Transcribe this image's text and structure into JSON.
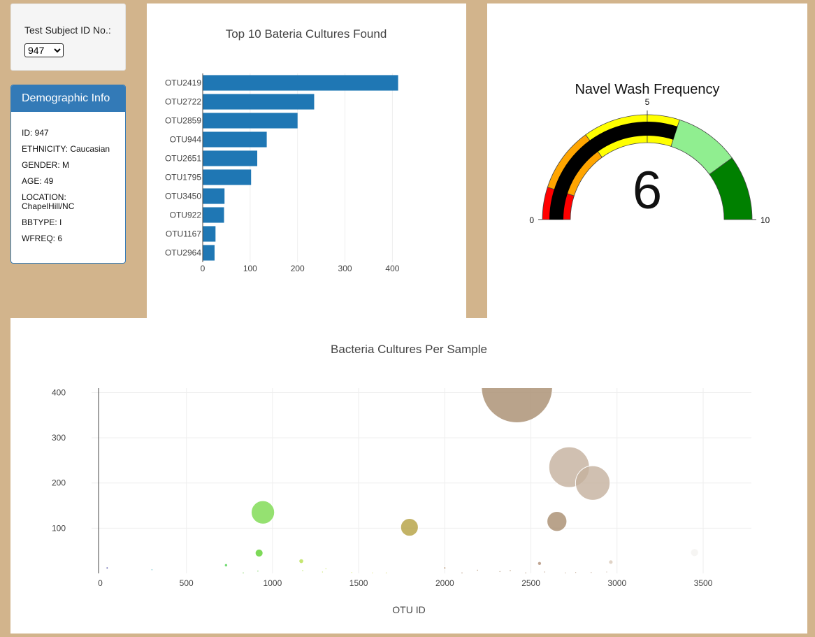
{
  "selector": {
    "label": "Test Subject ID No.:",
    "selected": "947"
  },
  "demographic": {
    "title": "Demographic Info",
    "rows": [
      "ID: 947",
      "ETHNICITY: Caucasian",
      "GENDER: M",
      "AGE: 49",
      "LOCATION: ChapelHill/NC",
      "BBTYPE: I",
      "WFREQ: 6"
    ]
  },
  "colors": {
    "page_bg": "#d2b48c",
    "bar": "#1f77b4",
    "panel_header": "#337ab7"
  },
  "chart_data": [
    {
      "type": "bar",
      "orientation": "horizontal",
      "title": "Top 10 Bateria Cultures Found",
      "categories": [
        "OTU2419",
        "OTU2722",
        "OTU2859",
        "OTU944",
        "OTU2651",
        "OTU1795",
        "OTU3450",
        "OTU922",
        "OTU1167",
        "OTU2964"
      ],
      "values": [
        412,
        235,
        200,
        135,
        115,
        102,
        46,
        45,
        27,
        25
      ],
      "xticks": [
        0,
        100,
        200,
        300,
        400
      ],
      "xlim": [
        0,
        420
      ],
      "grid": true
    },
    {
      "type": "gauge",
      "title": "Navel Wash Frequency",
      "value": 6,
      "value_label": "6",
      "min": 0,
      "max": 10,
      "tick_labels": [
        "0",
        "5",
        "10"
      ],
      "bands": [
        {
          "from": 0,
          "to": 1,
          "color": "#ff0000"
        },
        {
          "from": 1,
          "to": 3,
          "color": "#ffa500"
        },
        {
          "from": 3,
          "to": 5,
          "color": "#ffff00"
        },
        {
          "from": 5,
          "to": 6,
          "color": "#ffff00"
        },
        {
          "from": 6,
          "to": 8,
          "color": "#90ee90"
        },
        {
          "from": 8,
          "to": 10,
          "color": "#008000"
        }
      ],
      "bar_color": "#000000"
    },
    {
      "type": "scatter",
      "title": "Bacteria Cultures Per Sample",
      "xlabel": "OTU ID",
      "xticks": [
        0,
        500,
        1000,
        1500,
        2000,
        2500,
        3000,
        3500
      ],
      "yticks": [
        100,
        200,
        300,
        400
      ],
      "xlim": [
        -10,
        3780
      ],
      "ylim": [
        0,
        410
      ],
      "grid": true,
      "points": [
        {
          "x": 2419,
          "y": 412,
          "color": "#a88c6e"
        },
        {
          "x": 2722,
          "y": 235,
          "color": "#c4b09e"
        },
        {
          "x": 2859,
          "y": 200,
          "color": "#c4b09e"
        },
        {
          "x": 944,
          "y": 135,
          "color": "#7ad94d"
        },
        {
          "x": 2651,
          "y": 115,
          "color": "#a88c6e"
        },
        {
          "x": 1795,
          "y": 102,
          "color": "#b4a040"
        },
        {
          "x": 922,
          "y": 45,
          "color": "#5cd02e"
        },
        {
          "x": 1167,
          "y": 27,
          "color": "#b6e04e"
        },
        {
          "x": 2964,
          "y": 25,
          "color": "#d8c8b8"
        },
        {
          "x": 2550,
          "y": 22,
          "color": "#b09078"
        },
        {
          "x": 730,
          "y": 18,
          "color": "#4fd24f"
        },
        {
          "x": 1310,
          "y": 10,
          "color": "#c8e860"
        },
        {
          "x": 40,
          "y": 12,
          "color": "#3c3c9a"
        },
        {
          "x": 2000,
          "y": 12,
          "color": "#a07850"
        },
        {
          "x": 3450,
          "y": 46,
          "color": "#f4f2f0"
        },
        {
          "x": 300,
          "y": 8,
          "color": "#3aa8b8"
        },
        {
          "x": 2190,
          "y": 7,
          "color": "#a07850"
        },
        {
          "x": 2380,
          "y": 6,
          "color": "#a07850"
        },
        {
          "x": 1175,
          "y": 6,
          "color": "#a8e040"
        },
        {
          "x": 915,
          "y": 5,
          "color": "#50c830"
        },
        {
          "x": 2320,
          "y": 4,
          "color": "#a88c6e"
        },
        {
          "x": 2580,
          "y": 3,
          "color": "#b09078"
        },
        {
          "x": 2940,
          "y": 3,
          "color": "#c8b8a8"
        },
        {
          "x": 1460,
          "y": 2,
          "color": "#d8e870"
        },
        {
          "x": 1290,
          "y": 3,
          "color": "#c0e060"
        },
        {
          "x": 2760,
          "y": 2,
          "color": "#c0a890"
        },
        {
          "x": 2850,
          "y": 2,
          "color": "#c0a890"
        },
        {
          "x": 1660,
          "y": 1,
          "color": "#d8d870"
        },
        {
          "x": 1580,
          "y": 1,
          "color": "#e0e080"
        },
        {
          "x": 830,
          "y": 1,
          "color": "#60c840"
        },
        {
          "x": 2100,
          "y": 1,
          "color": "#a88060"
        },
        {
          "x": 2470,
          "y": 1,
          "color": "#a88c6e"
        },
        {
          "x": 2700,
          "y": 1,
          "color": "#c0a890"
        }
      ]
    }
  ]
}
